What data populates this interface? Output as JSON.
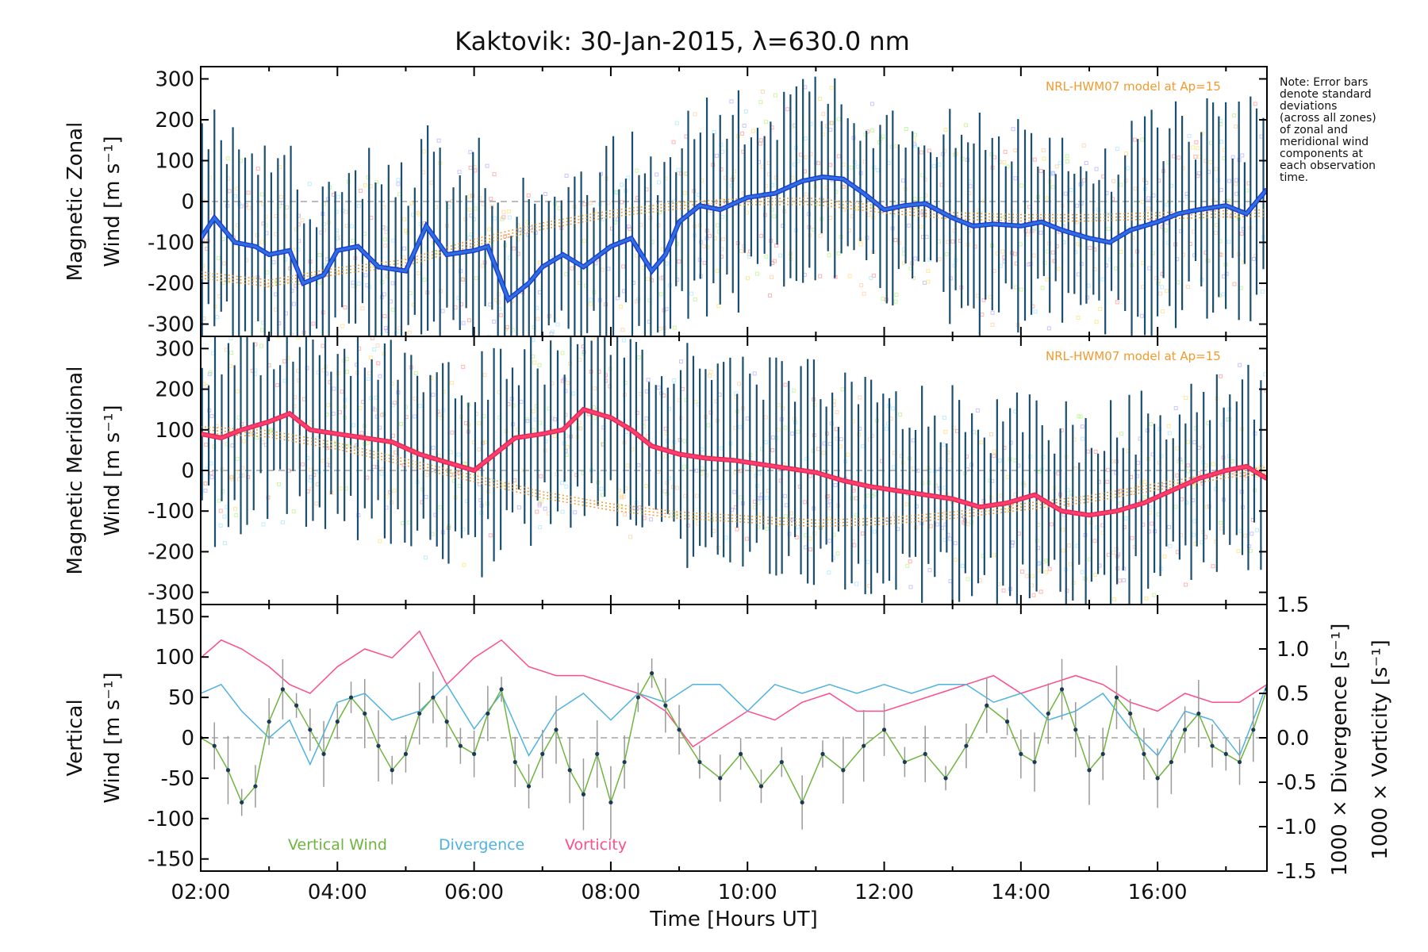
{
  "figure": {
    "title": "Kaktovik: 30-Jan-2015, λ=630.0 nm",
    "note_lines": [
      "Note: Error bars",
      "denote standard",
      "deviations",
      "(across all zones)",
      "of zonal and",
      "meridional wind",
      "components at",
      "each observation",
      "time."
    ],
    "model_label": "NRL-HWM07 model at Ap=15",
    "colors": {
      "zonal": "#2f6fdc",
      "zonal_dark": "#1a34d9",
      "meridional": "#ff3d6e",
      "error": "#1b4f72",
      "vertical": "#6fb43f",
      "divergence": "#4fb2e0",
      "vorticity": "#ff4d8a",
      "model": "#f29a2e",
      "scatter": [
        "#ff9b9b",
        "#ffe27a",
        "#b9f58a",
        "#a9e7ff",
        "#b8b0ff",
        "#ffcfa0"
      ]
    }
  },
  "chart_data": [
    {
      "type": "line",
      "ylabel_lines": [
        "Magnetic Zonal",
        "Wind [m s⁻¹]"
      ],
      "ylim": [
        -330,
        330
      ],
      "yticks": [
        300,
        200,
        100,
        0,
        -100,
        -200,
        -300
      ],
      "xlim": [
        2,
        17.6
      ],
      "series": [
        {
          "name": "Zonal wind",
          "x": [
            2,
            2.2,
            2.5,
            2.8,
            3,
            3.3,
            3.5,
            3.8,
            4,
            4.3,
            4.6,
            5,
            5.3,
            5.6,
            6,
            6.2,
            6.5,
            6.8,
            7,
            7.3,
            7.6,
            8,
            8.3,
            8.6,
            8.8,
            9,
            9.3,
            9.6,
            10,
            10.4,
            10.8,
            11.1,
            11.4,
            11.7,
            12,
            12.3,
            12.6,
            13,
            13.3,
            13.6,
            14,
            14.3,
            14.6,
            15,
            15.3,
            15.6,
            16,
            16.3,
            16.6,
            17,
            17.3,
            17.6
          ],
          "y": [
            -90,
            -40,
            -100,
            -110,
            -130,
            -120,
            -200,
            -180,
            -120,
            -110,
            -160,
            -170,
            -60,
            -130,
            -120,
            -110,
            -240,
            -200,
            -160,
            -130,
            -160,
            -110,
            -90,
            -170,
            -130,
            -50,
            -10,
            -20,
            10,
            20,
            50,
            60,
            55,
            20,
            -20,
            -10,
            -5,
            -40,
            -60,
            -55,
            -60,
            -50,
            -70,
            -90,
            -100,
            -70,
            -50,
            -30,
            -20,
            -10,
            -30,
            30
          ]
        },
        {
          "name": "Model",
          "x": [
            2,
            3,
            4,
            5,
            6,
            7,
            8,
            9,
            10,
            11,
            12,
            13,
            14,
            15,
            16,
            17,
            17.6
          ],
          "y": [
            -180,
            -200,
            -170,
            -150,
            -100,
            -60,
            -30,
            -10,
            0,
            0,
            -20,
            -35,
            -40,
            -40,
            -35,
            -30,
            -28
          ]
        }
      ]
    },
    {
      "type": "line",
      "ylabel_lines": [
        "Magnetic Meridional",
        "Wind [m s⁻¹]"
      ],
      "ylim": [
        -330,
        330
      ],
      "yticks": [
        300,
        200,
        100,
        0,
        -100,
        -200,
        -300
      ],
      "xlim": [
        2,
        17.6
      ],
      "series": [
        {
          "name": "Meridional wind",
          "x": [
            2,
            2.3,
            2.6,
            3,
            3.3,
            3.6,
            4,
            4.4,
            4.8,
            5.2,
            5.6,
            6,
            6.3,
            6.6,
            7,
            7.3,
            7.6,
            8,
            8.3,
            8.6,
            9,
            9.4,
            9.8,
            10.2,
            10.6,
            11,
            11.4,
            11.8,
            12.2,
            12.6,
            13,
            13.4,
            13.8,
            14.2,
            14.6,
            15,
            15.4,
            15.8,
            16.2,
            16.6,
            17,
            17.3,
            17.6
          ],
          "y": [
            90,
            80,
            100,
            120,
            140,
            100,
            90,
            80,
            70,
            40,
            20,
            0,
            40,
            80,
            90,
            100,
            150,
            130,
            100,
            60,
            40,
            30,
            25,
            15,
            5,
            -5,
            -25,
            -40,
            -50,
            -60,
            -70,
            -90,
            -80,
            -60,
            -100,
            -110,
            -100,
            -80,
            -50,
            -20,
            0,
            10,
            -20
          ]
        },
        {
          "name": "Model",
          "x": [
            2,
            3,
            4,
            5,
            6,
            7,
            8,
            9,
            10,
            11,
            12,
            13,
            14,
            15,
            16,
            17,
            17.6
          ],
          "y": [
            100,
            90,
            60,
            20,
            -20,
            -60,
            -90,
            -110,
            -120,
            -130,
            -125,
            -110,
            -90,
            -70,
            -40,
            -10,
            0
          ]
        }
      ]
    },
    {
      "type": "line",
      "ylabel_left_lines": [
        "Vertical",
        "Wind [m s⁻¹]"
      ],
      "ylabel_right_1": "1000 × Divergence [s⁻¹]",
      "ylabel_right_2": "1000 × Vorticity [s⁻¹]",
      "ylim": [
        -165,
        165
      ],
      "yticks": [
        150,
        100,
        50,
        0,
        -50,
        -100,
        -150
      ],
      "y2lim": [
        -1.5,
        1.5
      ],
      "y2ticks": [
        "1.5",
        "1.0",
        "0.5",
        "0.0",
        "-0.5",
        "-1.0",
        "-1.5"
      ],
      "xlim": [
        2,
        17.6
      ],
      "xticks": [
        "02:00",
        "04:00",
        "06:00",
        "08:00",
        "10:00",
        "12:00",
        "14:00",
        "16:00"
      ],
      "xlabel": "Time [Hours UT]",
      "legend": [
        "Vertical Wind",
        "Divergence",
        "Vorticity"
      ],
      "series": [
        {
          "name": "Vertical Wind",
          "x": [
            2,
            2.2,
            2.4,
            2.6,
            2.8,
            3,
            3.2,
            3.4,
            3.6,
            3.8,
            4,
            4.2,
            4.4,
            4.6,
            4.8,
            5,
            5.2,
            5.4,
            5.6,
            5.8,
            6,
            6.2,
            6.4,
            6.6,
            6.8,
            7,
            7.2,
            7.4,
            7.6,
            7.8,
            8,
            8.2,
            8.4,
            8.6,
            8.8,
            9,
            9.3,
            9.6,
            9.9,
            10.2,
            10.5,
            10.8,
            11.1,
            11.4,
            11.7,
            12,
            12.3,
            12.6,
            12.9,
            13.2,
            13.5,
            13.8,
            14,
            14.2,
            14.4,
            14.6,
            14.8,
            15,
            15.2,
            15.4,
            15.6,
            15.8,
            16,
            16.2,
            16.4,
            16.6,
            16.8,
            17,
            17.2,
            17.4,
            17.6
          ],
          "y": [
            0,
            -10,
            -40,
            -80,
            -60,
            20,
            60,
            40,
            10,
            -20,
            20,
            50,
            30,
            -10,
            -40,
            -20,
            30,
            50,
            20,
            -10,
            -20,
            30,
            60,
            -30,
            -60,
            -20,
            10,
            -40,
            -70,
            -20,
            -80,
            -30,
            50,
            80,
            40,
            10,
            -30,
            -50,
            -20,
            -60,
            -30,
            -80,
            -20,
            -40,
            -10,
            10,
            -30,
            -20,
            -50,
            -10,
            40,
            20,
            -20,
            -30,
            30,
            60,
            10,
            -40,
            -20,
            50,
            30,
            -20,
            -50,
            -30,
            10,
            30,
            -10,
            -20,
            -30,
            10,
            60
          ]
        },
        {
          "name": "Divergence",
          "x": [
            2,
            2.3,
            2.6,
            3,
            3.3,
            3.6,
            4,
            4.4,
            4.8,
            5.2,
            5.6,
            6,
            6.4,
            6.8,
            7.2,
            7.6,
            8,
            8.4,
            8.8,
            9.2,
            9.6,
            10,
            10.4,
            10.8,
            11.2,
            11.6,
            12,
            12.4,
            12.8,
            13.2,
            13.6,
            14,
            14.4,
            14.8,
            15.2,
            15.6,
            16,
            16.4,
            16.8,
            17.2,
            17.6
          ],
          "y": [
            0.5,
            0.6,
            0.3,
            0,
            0.2,
            -0.3,
            0.4,
            0.5,
            0.2,
            0.3,
            0.6,
            0.1,
            0.5,
            -0.2,
            0.3,
            0.5,
            0.2,
            0.5,
            0.4,
            0.6,
            0.6,
            0.3,
            0.6,
            0.5,
            0.6,
            0.5,
            0.6,
            0.5,
            0.6,
            0.6,
            0.4,
            0.5,
            0.2,
            0.3,
            0.5,
            0.1,
            -0.2,
            0.3,
            0.2,
            -0.2,
            0.6
          ]
        },
        {
          "name": "Vorticity",
          "x": [
            2,
            2.3,
            2.6,
            3,
            3.3,
            3.6,
            4,
            4.4,
            4.8,
            5.2,
            5.6,
            6,
            6.4,
            6.8,
            7.2,
            7.6,
            8,
            8.4,
            8.8,
            9.2,
            9.6,
            10,
            10.4,
            10.8,
            11.2,
            11.6,
            12,
            12.4,
            12.8,
            13.2,
            13.6,
            14,
            14.4,
            14.8,
            15.2,
            15.6,
            16,
            16.4,
            16.8,
            17.2,
            17.6
          ],
          "y": [
            0.9,
            1.1,
            1.0,
            0.8,
            0.6,
            0.5,
            0.8,
            1.0,
            0.9,
            1.2,
            0.6,
            0.9,
            1.1,
            0.8,
            0.7,
            0.7,
            0.6,
            0.5,
            0.3,
            -0.1,
            0.1,
            0.3,
            0.2,
            0.4,
            0.5,
            0.3,
            0.3,
            0.4,
            0.5,
            0.6,
            0.7,
            0.5,
            0.6,
            0.7,
            0.6,
            0.4,
            0.3,
            0.5,
            0.4,
            0.4,
            0.6
          ]
        }
      ]
    }
  ]
}
